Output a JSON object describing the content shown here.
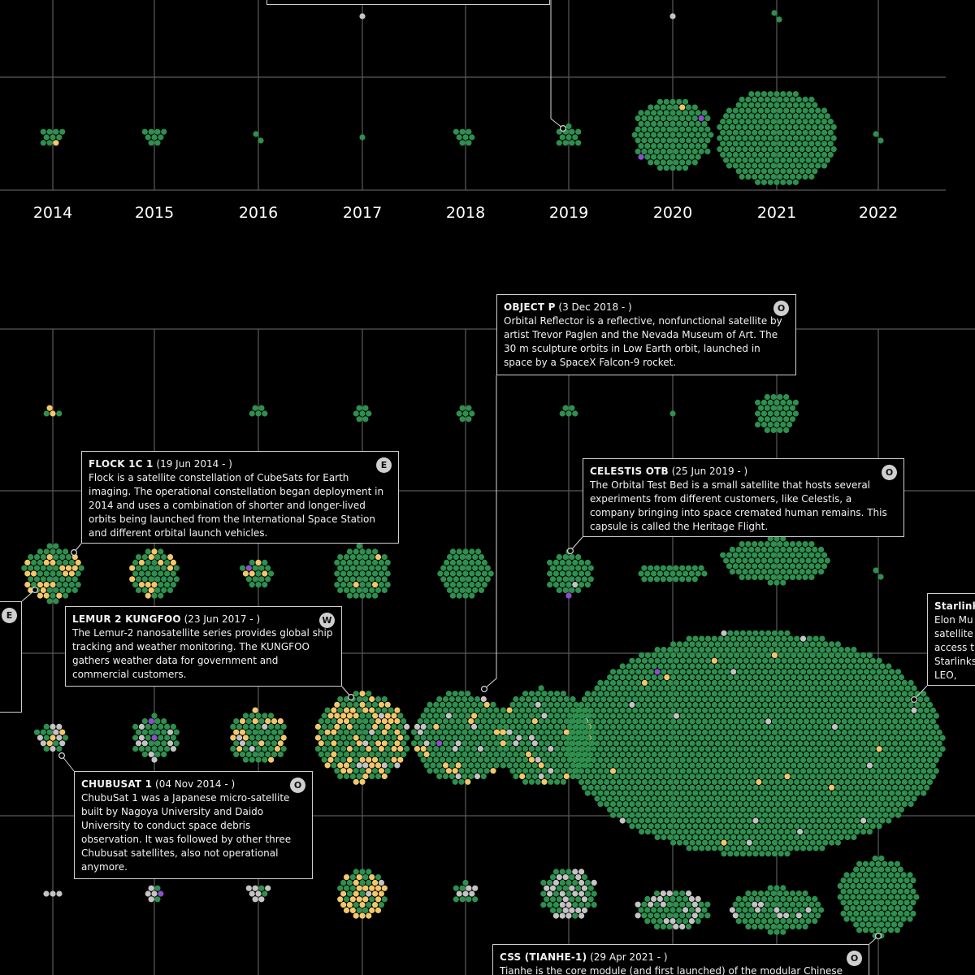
{
  "chart_data": [
    {
      "type": "scatter",
      "x_ticks": [
        "2014",
        "2015",
        "2016",
        "2017",
        "2018",
        "2019",
        "2020",
        "2021",
        "2022"
      ],
      "colors": {
        "operational": "#2e8f4e",
        "yellow": "#f3c86b",
        "grey": "#c4c4c4",
        "purple": "#8c4fc9"
      },
      "clusters": [
        {
          "year": "2014",
          "count": 10,
          "yellow": 1,
          "grey": 0,
          "purple": 0
        },
        {
          "year": "2015",
          "count": 9,
          "yellow": 0,
          "grey": 0,
          "purple": 0
        },
        {
          "year": "2016",
          "count": 2,
          "yellow": 0,
          "grey": 0,
          "purple": 0
        },
        {
          "year": "2017",
          "count": 1,
          "yellow": 0,
          "grey": 0,
          "purple": 0
        },
        {
          "year": "2017",
          "row": "top",
          "count": 1,
          "yellow": 0,
          "grey": 1,
          "purple": 0
        },
        {
          "year": "2018",
          "count": 8,
          "yellow": 0,
          "grey": 0,
          "purple": 0
        },
        {
          "year": "2019",
          "count": 12,
          "yellow": 0,
          "grey": 0,
          "purple": 0
        },
        {
          "year": "2020",
          "count": 130,
          "yellow": 1,
          "grey": 0,
          "purple": 2
        },
        {
          "year": "2020",
          "row": "top",
          "count": 1,
          "yellow": 0,
          "grey": 1,
          "purple": 0
        },
        {
          "year": "2021",
          "count": 260,
          "yellow": 0,
          "grey": 0,
          "purple": 0
        },
        {
          "year": "2021",
          "row": "top",
          "count": 2,
          "yellow": 0,
          "grey": 0,
          "purple": 0
        },
        {
          "year": "2022",
          "count": 2,
          "yellow": 0,
          "grey": 0,
          "purple": 0
        }
      ]
    },
    {
      "type": "scatter",
      "colors": {
        "operational": "#2e8f4e",
        "yellow": "#f3c86b",
        "grey": "#c4c4c4",
        "purple": "#8c4fc9"
      },
      "rows": [
        {
          "row": 1,
          "clusters": [
            {
              "year": "2014",
              "count": 4,
              "yellow": 2,
              "grey": 0,
              "purple": 0
            },
            {
              "year": "2015",
              "count": 0
            },
            {
              "year": "2016",
              "count": 5,
              "yellow": 0,
              "grey": 0,
              "purple": 0
            },
            {
              "year": "2017",
              "count": 7,
              "yellow": 0,
              "grey": 0,
              "purple": 0
            },
            {
              "year": "2018",
              "count": 7,
              "yellow": 0,
              "grey": 0,
              "purple": 0
            },
            {
              "year": "2019",
              "count": 5,
              "yellow": 0,
              "grey": 0,
              "purple": 0
            },
            {
              "year": "2020",
              "count": 1,
              "yellow": 0,
              "grey": 0,
              "purple": 0
            },
            {
              "year": "2021",
              "count": 40,
              "yellow": 0,
              "grey": 0,
              "purple": 0
            }
          ]
        },
        {
          "row": 2,
          "clusters": [
            {
              "year": "2014",
              "count": 75,
              "yellow": 22,
              "grey": 0,
              "purple": 0
            },
            {
              "year": "2015",
              "count": 55,
              "yellow": 14,
              "grey": 0,
              "purple": 0
            },
            {
              "year": "2016",
              "count": 20,
              "yellow": 4,
              "grey": 0,
              "purple": 1
            },
            {
              "year": "2017",
              "count": 70,
              "yellow": 3,
              "grey": 0,
              "purple": 0
            },
            {
              "year": "2018",
              "count": 60,
              "yellow": 0,
              "grey": 0,
              "purple": 0
            },
            {
              "year": "2019",
              "count": 45,
              "yellow": 0,
              "grey": 1,
              "purple": 1
            },
            {
              "year": "2020",
              "count": 30,
              "yellow": 0,
              "grey": 0,
              "purple": 0
            },
            {
              "year": "2021",
              "count": 110,
              "yellow": 0,
              "grey": 0,
              "purple": 0
            },
            {
              "year": "2022",
              "count": 2,
              "yellow": 0,
              "grey": 0,
              "purple": 0
            }
          ]
        },
        {
          "row": 3,
          "clusters": [
            {
              "year": "2014",
              "count": 20,
              "yellow": 3,
              "grey": 8,
              "purple": 0
            },
            {
              "year": "2015",
              "count": 45,
              "yellow": 0,
              "grey": 9,
              "purple": 2
            },
            {
              "year": "2016",
              "count": 70,
              "yellow": 16,
              "grey": 4,
              "purple": 0
            },
            {
              "year": "2017",
              "count": 190,
              "yellow": 70,
              "grey": 8,
              "purple": 0
            },
            {
              "year": "2018",
              "count": 200,
              "yellow": 14,
              "grey": 12,
              "purple": 1
            },
            {
              "year": "2019",
              "count": 220,
              "yellow": 14,
              "grey": 12,
              "purple": 0
            },
            {
              "year": "2020-2021",
              "count": 1900,
              "yellow": 10,
              "grey": 14,
              "purple": 1
            }
          ]
        },
        {
          "row": 4,
          "clusters": [
            {
              "year": "2014",
              "count": 3,
              "yellow": 0,
              "grey": 3,
              "purple": 0
            },
            {
              "year": "2015",
              "count": 7,
              "yellow": 0,
              "grey": 4,
              "purple": 1
            },
            {
              "year": "2016",
              "count": 9,
              "yellow": 0,
              "grey": 7,
              "purple": 0
            },
            {
              "year": "2017",
              "count": 55,
              "yellow": 30,
              "grey": 2,
              "purple": 0
            },
            {
              "year": "2018",
              "count": 12,
              "yellow": 0,
              "grey": 5,
              "purple": 0
            },
            {
              "year": "2019",
              "count": 65,
              "yellow": 0,
              "grey": 28,
              "purple": 0
            },
            {
              "year": "2020",
              "count": 65,
              "yellow": 0,
              "grey": 20,
              "purple": 0
            },
            {
              "year": "2021",
              "count": 95,
              "yellow": 0,
              "grey": 10,
              "purple": 0
            },
            {
              "year": "2022",
              "count": 140,
              "yellow": 0,
              "grey": 0,
              "purple": 0
            }
          ]
        }
      ]
    }
  ],
  "annotations": {
    "object_p": {
      "name": "OBJECT P",
      "date": " (3 Dec 2018 - )",
      "badge": "O",
      "text": "Orbital Reflector is a reflective, nonfunctional satellite by artist Trevor Paglen and the Nevada Museum of Art. The 30 m sculpture orbits in Low Earth orbit, launched in space by a SpaceX Falcon-9 rocket."
    },
    "flock": {
      "name": "FLOCK 1C 1",
      "date": " (19 Jun 2014 - )",
      "badge": "E",
      "text": "Flock is a satellite constellation of CubeSats for Earth imaging. The operational constellation began deployment in 2014 and uses a combination of shorter and longer-lived orbits being launched from the International Space Station and different orbital launch vehicles."
    },
    "celestis": {
      "name": "CELESTIS OTB",
      "date": " (25 Jun 2019 - )",
      "badge": "O",
      "text": "The Orbital Test Bed is a small satellite that hosts several experiments from different customers, like Celestis, a company bringing into space cremated human remains. This capsule is called the Heritage Flight."
    },
    "lemur": {
      "name": "LEMUR 2 KUNGFOO",
      "date": " (23 Jun 2017 - )",
      "badge": "W",
      "text": "The Lemur-2 nanosatellite series provides global ship tracking and weather monitoring. The KUNGFOO gathers weather data for government and commercial customers."
    },
    "chubusat": {
      "name": "CHUBUSAT 1",
      "date": " (04 Nov 2014 - )",
      "badge": "O",
      "text": "ChubuSat 1 was a Japanese micro-satellite built by Nagoya University and Daido University to conduct space debris observation. It was followed by other three Chubusat satellites, also not operational anymore."
    },
    "css": {
      "name": "CSS (TIANHE-1)",
      "date": " (29 Apr 2021 - )",
      "badge": "O",
      "text": "Tianhe is the core module (and first launched) of the modular Chinese"
    },
    "starlink": {
      "name": "Starlink",
      "date": "",
      "badge": "",
      "text": " Elon Mu satellite access t Starlinks LEO, aro"
    },
    "left_partial": {
      "badge": "E"
    }
  }
}
